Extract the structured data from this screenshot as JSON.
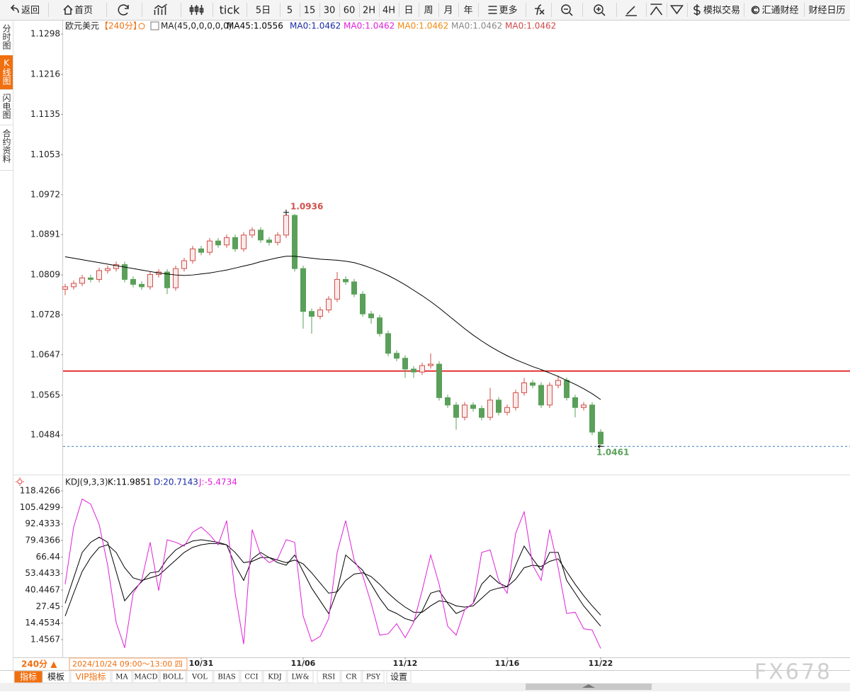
{
  "toolbar": {
    "items": [
      "返回",
      "首页",
      "tick",
      "5日",
      "5",
      "15",
      "30",
      "60",
      "2H",
      "4H",
      "日",
      "周",
      "月",
      "年",
      "更多",
      "模拟交易",
      "汇通财经",
      "财经日历"
    ]
  },
  "side_tabs": [
    "分时图",
    "K线图",
    "闪电图",
    "合约资料"
  ],
  "chart_data": [
    {
      "type": "candlestick",
      "title": "欧元美元",
      "period": "【240分】",
      "indicator": "MA(45,0,0,0,0,0)",
      "up_color": "#d0504a",
      "down_color": "#5aa05a",
      "categories": [
        null,
        null,
        null,
        null,
        null,
        null,
        null,
        null,
        null,
        null,
        null,
        null,
        null,
        null,
        null,
        null,
        "10/31",
        null,
        null,
        null,
        null,
        null,
        null,
        null,
        null,
        null,
        null,
        null,
        "11/06",
        null,
        null,
        null,
        null,
        null,
        null,
        null,
        null,
        null,
        null,
        null,
        "11/12",
        null,
        null,
        null,
        null,
        null,
        null,
        null,
        null,
        null,
        null,
        null,
        "11/16",
        null,
        null,
        null,
        null,
        null,
        null,
        null,
        null,
        null,
        null,
        "11/22"
      ],
      "open": [
        1.078,
        1.0785,
        1.0792,
        1.0803,
        1.08,
        1.0818,
        1.0822,
        1.083,
        1.08,
        1.079,
        1.0785,
        1.081,
        1.0815,
        1.0783,
        1.0822,
        1.0838,
        1.0862,
        1.0855,
        1.0878,
        1.087,
        1.0885,
        1.0862,
        1.089,
        1.09,
        1.088,
        1.0875,
        1.089,
        1.093,
        1.0822,
        1.0735,
        1.0725,
        1.0738,
        1.076,
        1.08,
        1.0795,
        1.077,
        1.073,
        1.0722,
        1.069,
        1.065,
        1.064,
        1.0618,
        1.0612,
        1.0625,
        1.0628,
        1.056,
        1.0545,
        1.052,
        1.0545,
        1.0538,
        1.052,
        1.0555,
        1.053,
        1.054,
        1.057,
        1.059,
        1.0585,
        1.0545,
        1.0585,
        1.0595,
        1.056,
        1.054,
        1.0545,
        1.049
      ],
      "high": [
        1.0791,
        1.0798,
        1.0809,
        1.0809,
        1.0824,
        1.0828,
        1.0836,
        1.0836,
        1.0806,
        1.0796,
        1.0816,
        1.0821,
        1.0821,
        1.0828,
        1.0844,
        1.0868,
        1.0868,
        1.0884,
        1.0884,
        1.0891,
        1.0891,
        1.0896,
        1.0906,
        1.0906,
        1.0886,
        1.0896,
        1.0936,
        1.0933,
        1.0828,
        1.0741,
        1.0744,
        1.0766,
        1.0815,
        1.0806,
        1.0801,
        1.0776,
        1.0736,
        1.0728,
        1.0696,
        1.0656,
        1.0646,
        1.0624,
        1.0631,
        1.065,
        1.0634,
        1.0566,
        1.0551,
        1.0551,
        1.0551,
        1.0544,
        1.058,
        1.0561,
        1.0546,
        1.0576,
        1.06,
        1.0596,
        1.0591,
        1.0591,
        1.0605,
        1.0601,
        1.0566,
        1.0551,
        1.0551,
        1.0496
      ],
      "low": [
        1.0768,
        1.0779,
        1.0786,
        1.0794,
        1.0794,
        1.0812,
        1.0816,
        1.0794,
        1.0784,
        1.0779,
        1.0779,
        1.0804,
        1.077,
        1.0777,
        1.0816,
        1.0832,
        1.0849,
        1.0849,
        1.0864,
        1.0864,
        1.0856,
        1.0856,
        1.0884,
        1.0874,
        1.0869,
        1.0869,
        1.0884,
        1.0816,
        1.07,
        1.069,
        1.0719,
        1.0732,
        1.0754,
        1.0789,
        1.0764,
        1.0724,
        1.071,
        1.0684,
        1.0644,
        1.0634,
        1.06,
        1.06,
        1.0606,
        1.0619,
        1.0554,
        1.0539,
        1.0495,
        1.0514,
        1.0532,
        1.0514,
        1.0514,
        1.0524,
        1.0524,
        1.0534,
        1.0564,
        1.0579,
        1.0539,
        1.0539,
        1.0579,
        1.0554,
        1.052,
        1.0534,
        1.0484,
        1.0461
      ],
      "close": [
        1.0785,
        1.0792,
        1.0803,
        1.08,
        1.0818,
        1.0822,
        1.083,
        1.08,
        1.079,
        1.0785,
        1.081,
        1.0815,
        1.0783,
        1.0822,
        1.0838,
        1.0862,
        1.0855,
        1.0878,
        1.087,
        1.0885,
        1.0862,
        1.089,
        1.09,
        1.088,
        1.0875,
        1.089,
        1.093,
        1.0822,
        1.0735,
        1.0725,
        1.0738,
        1.076,
        1.08,
        1.0795,
        1.077,
        1.073,
        1.0722,
        1.069,
        1.065,
        1.064,
        1.0618,
        1.0612,
        1.0625,
        1.0628,
        1.056,
        1.0545,
        1.052,
        1.0545,
        1.0538,
        1.052,
        1.0555,
        1.053,
        1.054,
        1.057,
        1.059,
        1.0585,
        1.0545,
        1.0585,
        1.0595,
        1.056,
        1.054,
        1.0545,
        1.049,
        1.0466
      ],
      "series": [
        {
          "name": "MA45:1.0556",
          "color": "#000000",
          "values": [
            1.0846,
            1.0843,
            1.084,
            1.0837,
            1.0834,
            1.0831,
            1.0828,
            1.0825,
            1.0822,
            1.0819,
            1.0816,
            1.0813,
            1.0811,
            1.0809,
            1.0808,
            1.0809,
            1.0811,
            1.0813,
            1.0816,
            1.0819,
            1.0823,
            1.0827,
            1.0831,
            1.0836,
            1.084,
            1.0844,
            1.0847,
            1.0847,
            1.0845,
            1.0843,
            1.0841,
            1.084,
            1.0839,
            1.0837,
            1.0834,
            1.0829,
            1.0823,
            1.0816,
            1.0808,
            1.0799,
            1.0789,
            1.0778,
            1.0767,
            1.0755,
            1.0742,
            1.0728,
            1.0714,
            1.07,
            1.0687,
            1.0675,
            1.0664,
            1.0654,
            1.0645,
            1.0637,
            1.063,
            1.0623,
            1.0617,
            1.061,
            1.0603,
            1.0595,
            1.0587,
            1.0578,
            1.0568,
            1.0556
          ]
        }
      ],
      "legend_extra": [
        {
          "text": "MA0:1.0462",
          "color": "#1a2aa8"
        },
        {
          "text": "MA0:1.0462",
          "color": "#e020d8"
        },
        {
          "text": "MA0:1.0462",
          "color": "#f08a10"
        },
        {
          "text": "MA0:1.0462",
          "color": "#888888"
        },
        {
          "text": "MA0:1.0462",
          "color": "#d04848"
        }
      ],
      "hline": {
        "value": 1.0614,
        "color": "#e01010"
      },
      "ylim": [
        1.0411,
        1.1324
      ],
      "yticks": [
        1.1298,
        1.1216,
        1.1135,
        1.1053,
        1.0972,
        1.0891,
        1.0809,
        1.0728,
        1.0647,
        1.0565,
        1.0484
      ],
      "grid": false
    },
    {
      "type": "line",
      "title": "KDJ(9,3,3)",
      "series": [
        {
          "name": "K:11.9851",
          "color": "#000000",
          "values": [
            30,
            50,
            70,
            78,
            82,
            78,
            55,
            32,
            40,
            47,
            54,
            55,
            65,
            72,
            76,
            79,
            80,
            79,
            78,
            76,
            60,
            48,
            65,
            70,
            66,
            62,
            60,
            68,
            55,
            42,
            32,
            22,
            40,
            68,
            62,
            56,
            45,
            34,
            25,
            22,
            18,
            16,
            24,
            38,
            40,
            30,
            22,
            25,
            30,
            45,
            52,
            46,
            43,
            60,
            75,
            65,
            56,
            70,
            70,
            48,
            38,
            28,
            20,
            11.9851
          ]
        },
        {
          "name": "D:20.7143",
          "color": "#1a2aa8",
          "line_color": "#000000",
          "values": [
            20,
            38,
            55,
            66,
            74,
            76,
            70,
            58,
            50,
            48,
            50,
            52,
            58,
            64,
            70,
            74,
            76,
            77,
            77,
            76,
            70,
            62,
            63,
            66,
            66,
            64,
            62,
            64,
            61,
            54,
            46,
            38,
            39,
            48,
            53,
            54,
            51,
            45,
            38,
            32,
            27,
            23,
            23,
            28,
            32,
            31,
            28,
            27,
            28,
            34,
            40,
            42,
            43,
            49,
            58,
            60,
            59,
            63,
            65,
            55,
            45,
            36,
            28,
            20.7143
          ]
        },
        {
          "name": "J:-5.4734",
          "color": "#e020d8",
          "values": [
            45,
            90,
            112,
            108,
            92,
            60,
            15,
            -5,
            38,
            48,
            78,
            40,
            80,
            78,
            75,
            86,
            90,
            84,
            76,
            95,
            38,
            -2,
            88,
            68,
            62,
            65,
            80,
            78,
            20,
            0,
            4,
            18,
            70,
            95,
            64,
            52,
            30,
            5,
            6,
            14,
            3,
            15,
            40,
            68,
            45,
            12,
            5,
            25,
            30,
            70,
            72,
            48,
            38,
            85,
            102,
            60,
            48,
            88,
            58,
            22,
            23,
            10,
            9,
            -5.4734
          ]
        }
      ],
      "ylim": [
        -12.47,
        130.12
      ],
      "yticks": [
        118.4266,
        105.4299,
        92.4333,
        79.4366,
        66.44,
        53.4433,
        40.4467,
        27.45,
        14.4534,
        1.4567
      ],
      "grid": false
    }
  ],
  "footer": {
    "period": "240分 ▲",
    "time": "2024/10/24 09:00～13:00 四",
    "tabs": [
      "指标",
      "模板",
      "VIP指标",
      "MA",
      "MACD",
      "BOLL",
      "VOL",
      "BIAS",
      "CCI",
      "KDJ",
      "LW&",
      "RSI",
      "CR",
      "PSY",
      "设置"
    ]
  },
  "watermark": "FX678"
}
